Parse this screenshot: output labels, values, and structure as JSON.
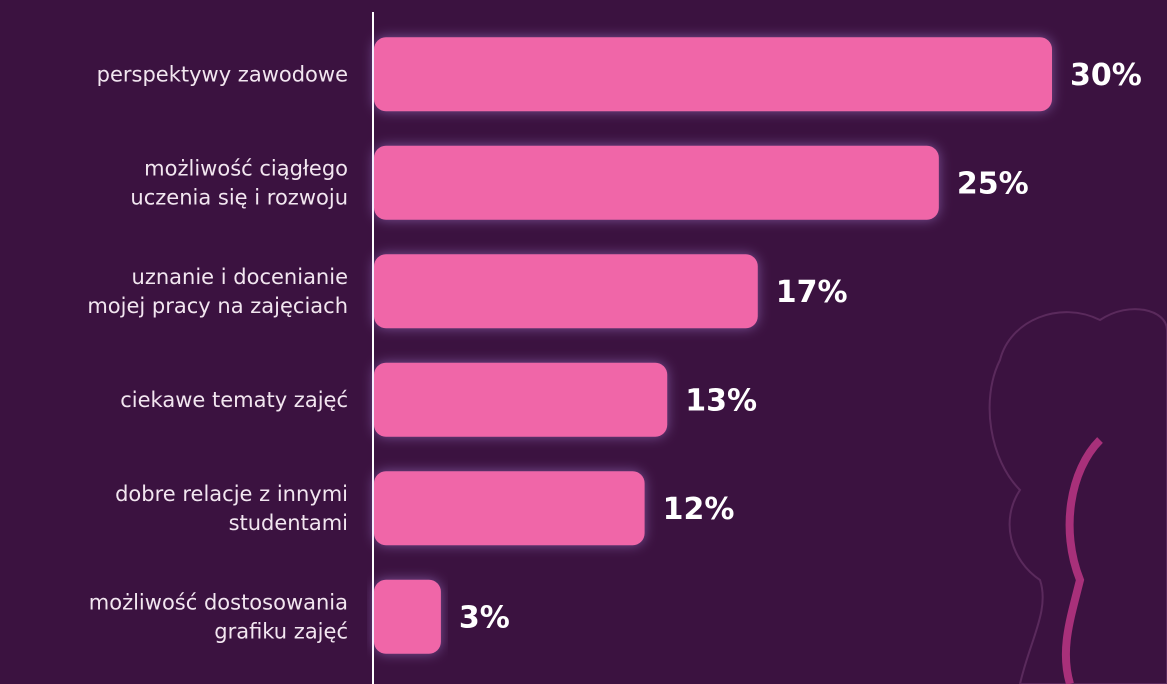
{
  "chart_data": {
    "type": "bar",
    "orientation": "horizontal",
    "categories": [
      "perspektywy zawodowe",
      "możliwość ciągłego\nuczenia się i rozwoju",
      "uznanie i docenianie\nmojej pracy na zajęciach",
      "ciekawe tematy zajęć",
      "dobre relacje z innymi\nstudentami",
      "możliwość dostosowania\ngrafiku zajęć"
    ],
    "values": [
      30,
      25,
      17,
      13,
      12,
      3
    ],
    "value_labels": [
      "30%",
      "25%",
      "17%",
      "13%",
      "12%",
      "3%"
    ],
    "color": "#f066a8"
  }
}
